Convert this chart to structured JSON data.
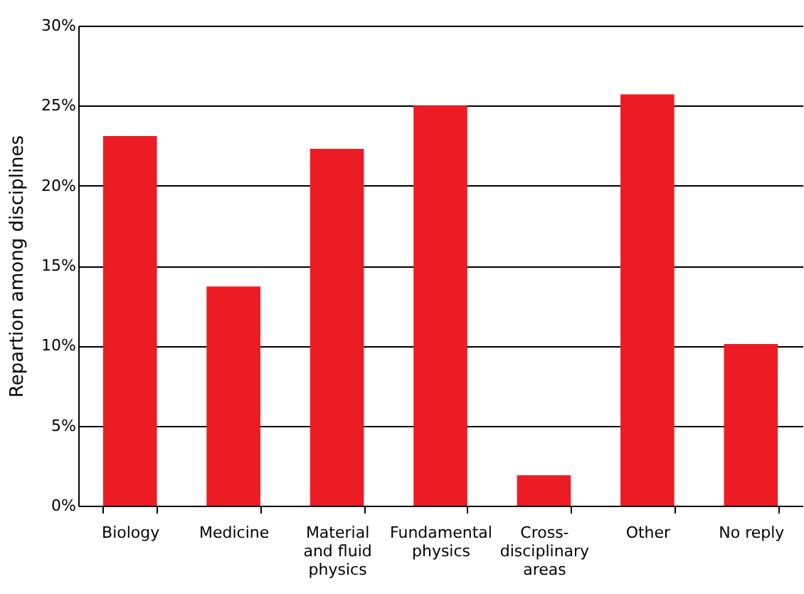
{
  "chart_data": {
    "type": "bar",
    "ylabel": "Repartion among disciplines",
    "categories": [
      "Biology",
      "Medicine",
      "Material and fluid physics",
      "Fundamental physics",
      "Cross-disciplinary areas",
      "Other",
      "No reply"
    ],
    "values": [
      23.1,
      13.7,
      22.3,
      25.0,
      1.9,
      25.7,
      10.1
    ],
    "color": "#ed1c24",
    "ylim": [
      0,
      30
    ],
    "yticks": [
      {
        "value": 0,
        "label": "0%"
      },
      {
        "value": 5,
        "label": "5%"
      },
      {
        "value": 10,
        "label": "10%"
      },
      {
        "value": 15,
        "label": "15%"
      },
      {
        "value": 20,
        "label": "20%"
      },
      {
        "value": 25,
        "label": "25%"
      },
      {
        "value": 30,
        "label": "30%"
      }
    ],
    "grid": "y"
  }
}
